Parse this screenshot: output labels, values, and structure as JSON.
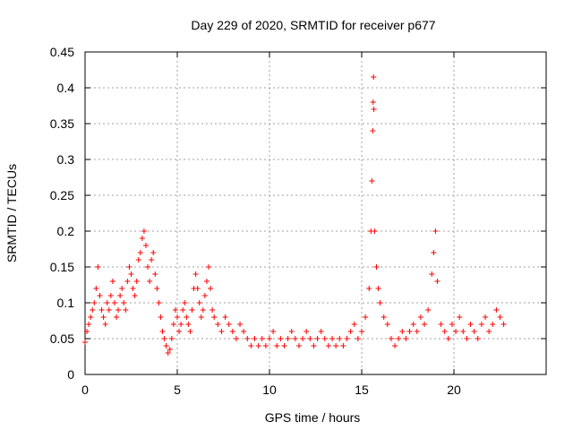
{
  "chart_data": {
    "type": "scatter",
    "title": "Day 229 of 2020, SRMTID for receiver p677",
    "xlabel": "GPS time / hours",
    "ylabel": "SRMTID / TECUs",
    "xlim": [
      0,
      25
    ],
    "ylim": [
      0,
      0.45
    ],
    "xticks": [
      0,
      5,
      10,
      15,
      20
    ],
    "yticks": [
      0,
      0.05,
      0.1,
      0.15,
      0.2,
      0.25,
      0.3,
      0.35,
      0.4,
      0.45
    ],
    "grid": true,
    "marker": "+",
    "series_color": "#ff0000",
    "points": [
      [
        0.0,
        0.045
      ],
      [
        0.1,
        0.06
      ],
      [
        0.2,
        0.07
      ],
      [
        0.3,
        0.08
      ],
      [
        0.4,
        0.09
      ],
      [
        0.5,
        0.1
      ],
      [
        0.6,
        0.12
      ],
      [
        0.7,
        0.15
      ],
      [
        0.8,
        0.11
      ],
      [
        0.9,
        0.09
      ],
      [
        1.0,
        0.08
      ],
      [
        1.1,
        0.07
      ],
      [
        1.2,
        0.1
      ],
      [
        1.3,
        0.09
      ],
      [
        1.4,
        0.11
      ],
      [
        1.5,
        0.13
      ],
      [
        1.6,
        0.1
      ],
      [
        1.7,
        0.08
      ],
      [
        1.8,
        0.09
      ],
      [
        1.9,
        0.11
      ],
      [
        2.0,
        0.12
      ],
      [
        2.1,
        0.1
      ],
      [
        2.2,
        0.09
      ],
      [
        2.3,
        0.13
      ],
      [
        2.4,
        0.15
      ],
      [
        2.5,
        0.14
      ],
      [
        2.6,
        0.12
      ],
      [
        2.7,
        0.11
      ],
      [
        2.8,
        0.13
      ],
      [
        2.9,
        0.16
      ],
      [
        3.0,
        0.17
      ],
      [
        3.1,
        0.19
      ],
      [
        3.2,
        0.2
      ],
      [
        3.3,
        0.18
      ],
      [
        3.4,
        0.15
      ],
      [
        3.5,
        0.13
      ],
      [
        3.6,
        0.16
      ],
      [
        3.7,
        0.17
      ],
      [
        3.8,
        0.14
      ],
      [
        3.9,
        0.12
      ],
      [
        4.0,
        0.1
      ],
      [
        4.1,
        0.08
      ],
      [
        4.2,
        0.06
      ],
      [
        4.3,
        0.05
      ],
      [
        4.4,
        0.04
      ],
      [
        4.5,
        0.03
      ],
      [
        4.6,
        0.035
      ],
      [
        4.7,
        0.05
      ],
      [
        4.8,
        0.07
      ],
      [
        4.9,
        0.09
      ],
      [
        5.0,
        0.08
      ],
      [
        5.1,
        0.06
      ],
      [
        5.2,
        0.07
      ],
      [
        5.3,
        0.09
      ],
      [
        5.4,
        0.1
      ],
      [
        5.5,
        0.08
      ],
      [
        5.6,
        0.07
      ],
      [
        5.7,
        0.06
      ],
      [
        5.8,
        0.09
      ],
      [
        5.9,
        0.12
      ],
      [
        6.0,
        0.14
      ],
      [
        6.1,
        0.12
      ],
      [
        6.2,
        0.1
      ],
      [
        6.3,
        0.08
      ],
      [
        6.4,
        0.09
      ],
      [
        6.5,
        0.11
      ],
      [
        6.6,
        0.13
      ],
      [
        6.7,
        0.15
      ],
      [
        6.8,
        0.12
      ],
      [
        6.9,
        0.09
      ],
      [
        7.0,
        0.08
      ],
      [
        7.2,
        0.07
      ],
      [
        7.4,
        0.06
      ],
      [
        7.6,
        0.08
      ],
      [
        7.8,
        0.07
      ],
      [
        8.0,
        0.06
      ],
      [
        8.2,
        0.05
      ],
      [
        8.4,
        0.07
      ],
      [
        8.6,
        0.06
      ],
      [
        8.8,
        0.05
      ],
      [
        9.0,
        0.04
      ],
      [
        9.2,
        0.05
      ],
      [
        9.4,
        0.04
      ],
      [
        9.6,
        0.05
      ],
      [
        9.8,
        0.04
      ],
      [
        10.0,
        0.05
      ],
      [
        10.2,
        0.06
      ],
      [
        10.4,
        0.04
      ],
      [
        10.6,
        0.05
      ],
      [
        10.8,
        0.04
      ],
      [
        11.0,
        0.05
      ],
      [
        11.2,
        0.06
      ],
      [
        11.4,
        0.05
      ],
      [
        11.6,
        0.04
      ],
      [
        11.8,
        0.05
      ],
      [
        12.0,
        0.06
      ],
      [
        12.2,
        0.05
      ],
      [
        12.4,
        0.04
      ],
      [
        12.6,
        0.05
      ],
      [
        12.8,
        0.06
      ],
      [
        13.0,
        0.05
      ],
      [
        13.2,
        0.04
      ],
      [
        13.4,
        0.05
      ],
      [
        13.6,
        0.04
      ],
      [
        13.8,
        0.05
      ],
      [
        14.0,
        0.04
      ],
      [
        14.2,
        0.05
      ],
      [
        14.4,
        0.06
      ],
      [
        14.6,
        0.07
      ],
      [
        14.8,
        0.05
      ],
      [
        15.0,
        0.06
      ],
      [
        15.2,
        0.08
      ],
      [
        15.4,
        0.12
      ],
      [
        15.5,
        0.2
      ],
      [
        15.55,
        0.27
      ],
      [
        15.6,
        0.34
      ],
      [
        15.62,
        0.38
      ],
      [
        15.64,
        0.415
      ],
      [
        15.66,
        0.37
      ],
      [
        15.7,
        0.2
      ],
      [
        15.8,
        0.15
      ],
      [
        15.9,
        0.12
      ],
      [
        16.0,
        0.1
      ],
      [
        16.2,
        0.08
      ],
      [
        16.4,
        0.07
      ],
      [
        16.6,
        0.05
      ],
      [
        16.8,
        0.04
      ],
      [
        17.0,
        0.05
      ],
      [
        17.2,
        0.06
      ],
      [
        17.4,
        0.05
      ],
      [
        17.6,
        0.06
      ],
      [
        17.8,
        0.07
      ],
      [
        18.0,
        0.06
      ],
      [
        18.2,
        0.08
      ],
      [
        18.4,
        0.07
      ],
      [
        18.6,
        0.09
      ],
      [
        18.8,
        0.14
      ],
      [
        18.9,
        0.17
      ],
      [
        19.0,
        0.2
      ],
      [
        19.1,
        0.13
      ],
      [
        19.3,
        0.07
      ],
      [
        19.5,
        0.06
      ],
      [
        19.7,
        0.05
      ],
      [
        19.9,
        0.07
      ],
      [
        20.1,
        0.06
      ],
      [
        20.3,
        0.08
      ],
      [
        20.5,
        0.06
      ],
      [
        20.7,
        0.05
      ],
      [
        20.9,
        0.07
      ],
      [
        21.1,
        0.06
      ],
      [
        21.3,
        0.05
      ],
      [
        21.5,
        0.07
      ],
      [
        21.7,
        0.08
      ],
      [
        21.9,
        0.06
      ],
      [
        22.1,
        0.07
      ],
      [
        22.3,
        0.09
      ],
      [
        22.5,
        0.08
      ],
      [
        22.7,
        0.07
      ]
    ]
  }
}
